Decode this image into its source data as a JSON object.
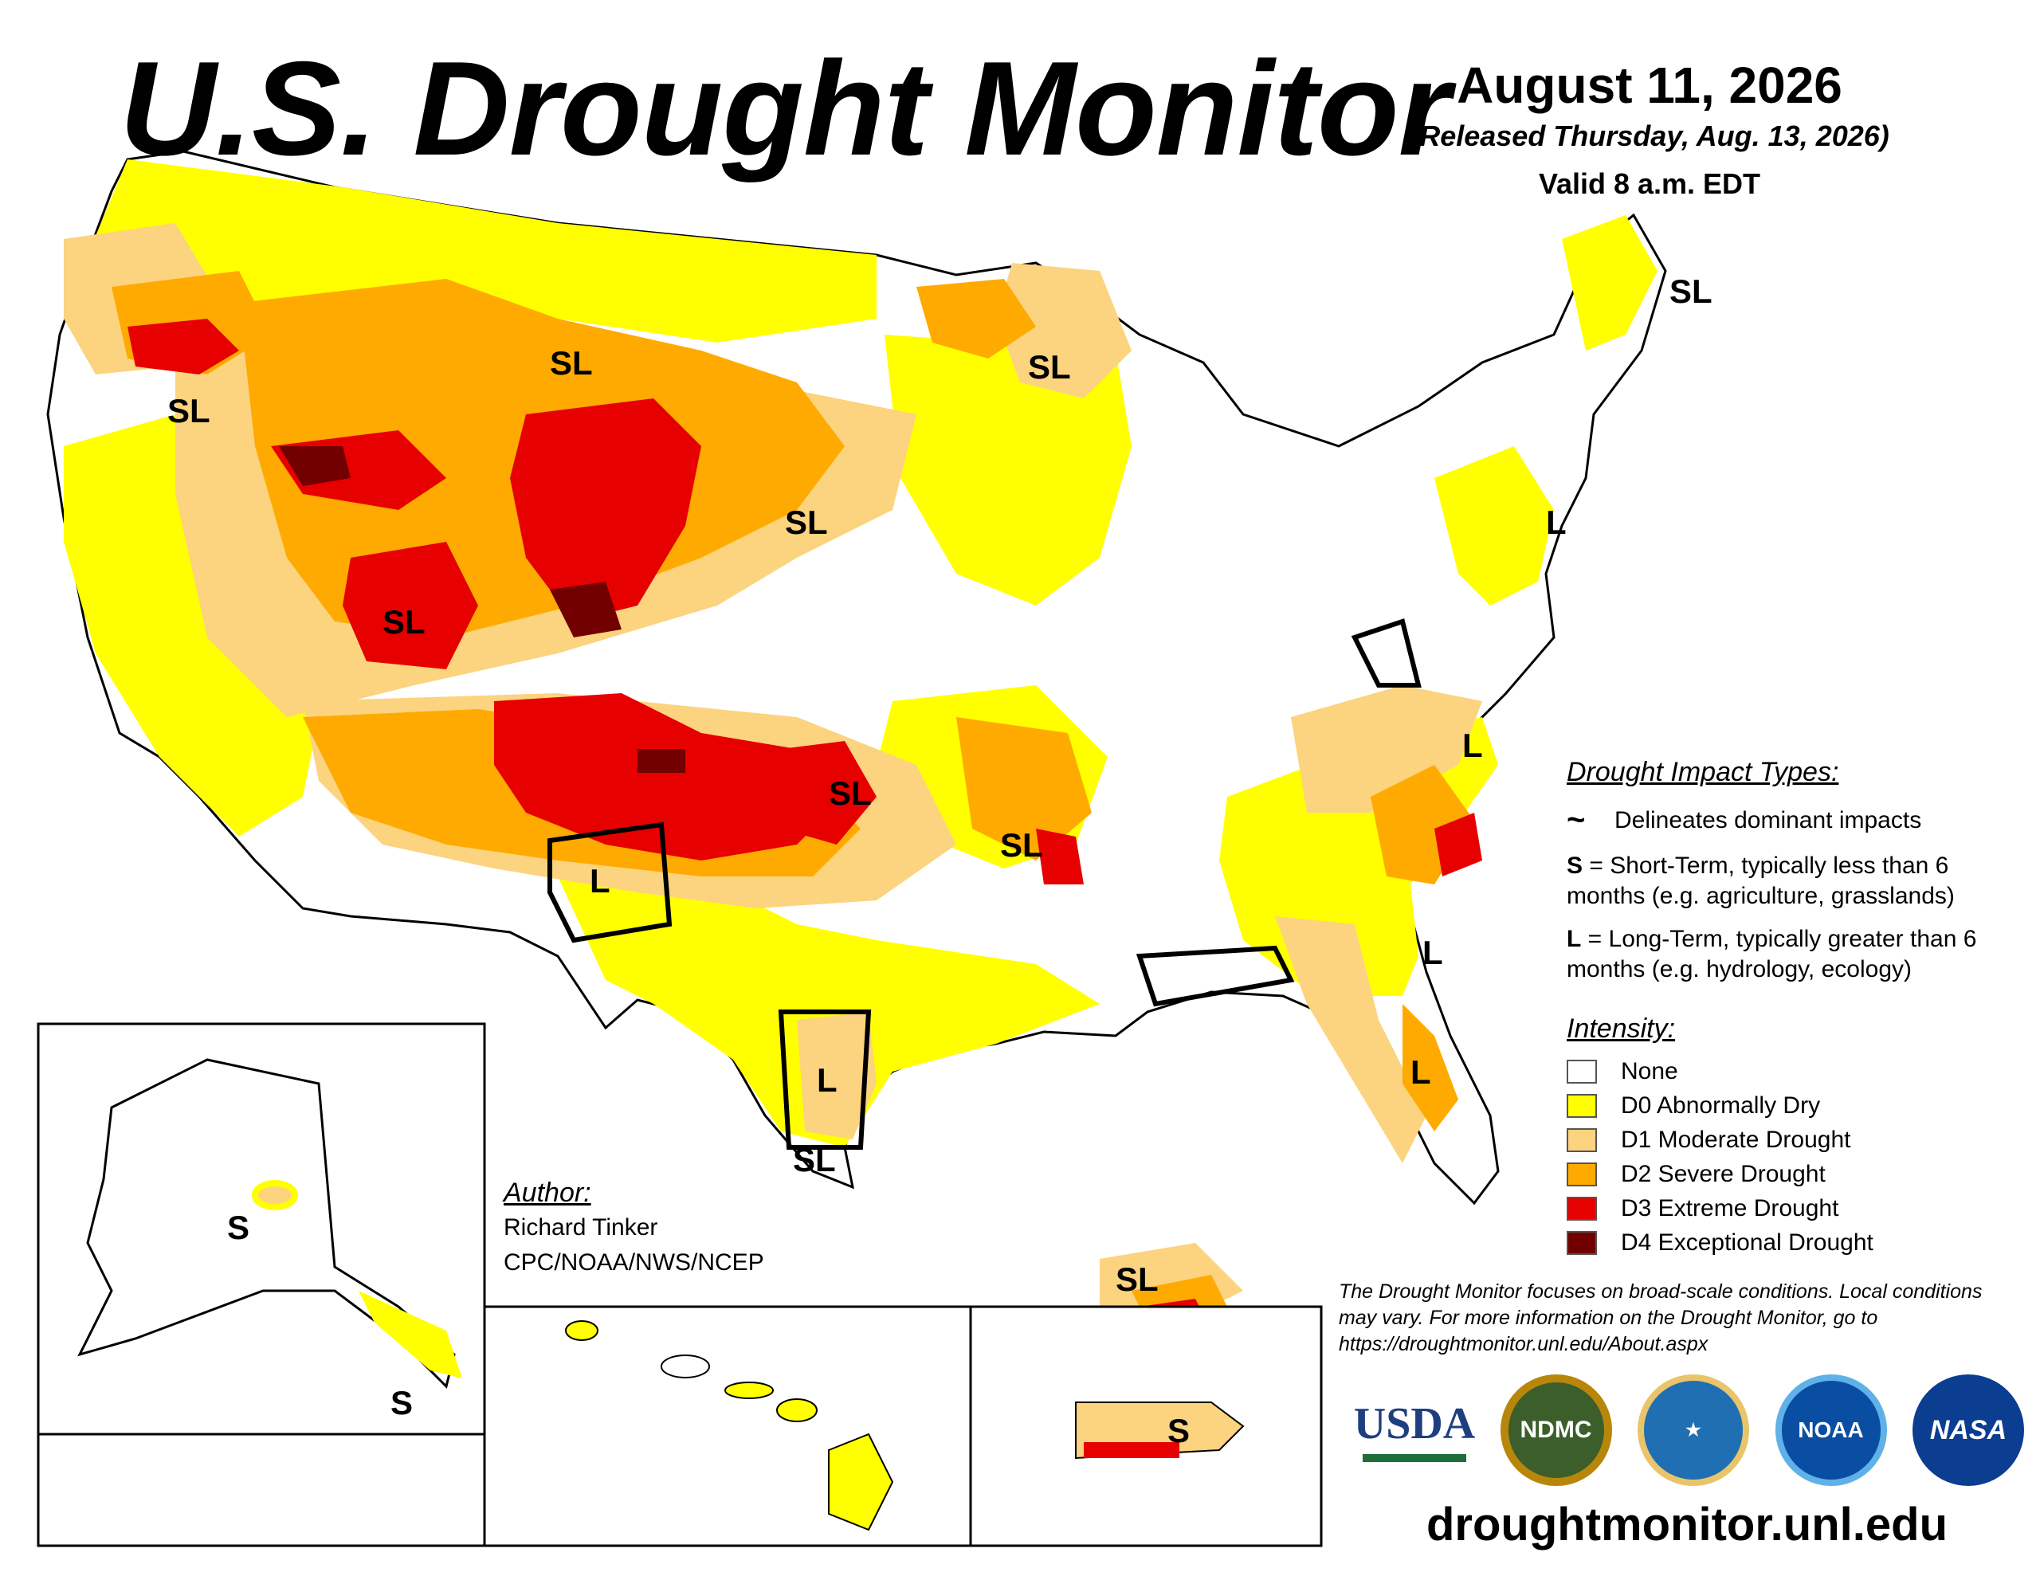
{
  "header": {
    "title": "U.S. Drought Monitor",
    "date": "August 11, 2026",
    "released": "(Released Thursday, Aug. 13, 2026)",
    "valid": "Valid 8 a.m. EDT"
  },
  "map": {
    "impact_labels": [
      "SL",
      "SL",
      "SL",
      "SL",
      "SL",
      "SL",
      "SL",
      "SL",
      "L",
      "L",
      "L",
      "L",
      "SL",
      "L",
      "L",
      "SL",
      "S",
      "S",
      "S"
    ]
  },
  "legend": {
    "impact_title": "Drought Impact Types:",
    "delineates": "Delineates dominant impacts",
    "short_term_key": "S",
    "short_term_text": " = Short-Term, typically less than 6 months (e.g. agriculture, grasslands)",
    "long_term_key": "L",
    "long_term_text": " = Long-Term, typically greater than 6 months (e.g. hydrology, ecology)",
    "intensity_title": "Intensity:",
    "intensity": [
      {
        "label": "None",
        "color": "#ffffff"
      },
      {
        "label": "D0 Abnormally Dry",
        "color": "#ffff00"
      },
      {
        "label": "D1 Moderate Drought",
        "color": "#fcd37f"
      },
      {
        "label": "D2 Severe Drought",
        "color": "#ffaa00"
      },
      {
        "label": "D3 Extreme Drought",
        "color": "#e60000"
      },
      {
        "label": "D4 Exceptional Drought",
        "color": "#730000"
      }
    ]
  },
  "author": {
    "label": "Author:",
    "name": "Richard Tinker",
    "org": "CPC/NOAA/NWS/NCEP"
  },
  "disclaimer": "The Drought Monitor focuses on broad-scale conditions. Local conditions may vary. For more information on the Drought Monitor, go to https://droughtmonitor.unl.edu/About.aspx",
  "logos": {
    "usda": "USDA",
    "ndmc": "NDMC",
    "noaa": "NOAA",
    "nasa": "NASA"
  },
  "website": "droughtmonitor.unl.edu"
}
